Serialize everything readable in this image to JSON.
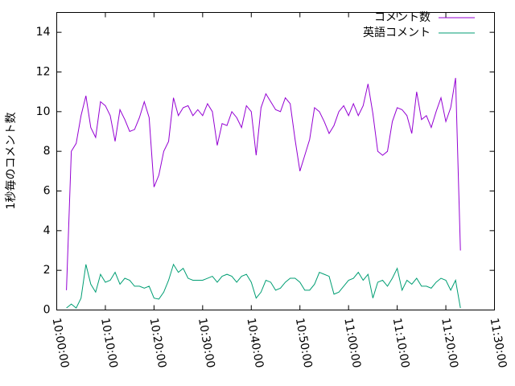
{
  "chart_data": {
    "type": "line",
    "ylabel": "1秒毎のコメント数",
    "x": [
      "10:02:00",
      "10:03:00",
      "10:04:00",
      "10:05:00",
      "10:06:00",
      "10:07:00",
      "10:08:00",
      "10:09:00",
      "10:10:00",
      "10:11:00",
      "10:12:00",
      "10:13:00",
      "10:14:00",
      "10:15:00",
      "10:16:00",
      "10:17:00",
      "10:18:00",
      "10:19:00",
      "10:20:00",
      "10:21:00",
      "10:22:00",
      "10:23:00",
      "10:24:00",
      "10:25:00",
      "10:26:00",
      "10:27:00",
      "10:28:00",
      "10:29:00",
      "10:30:00",
      "10:31:00",
      "10:32:00",
      "10:33:00",
      "10:34:00",
      "10:35:00",
      "10:36:00",
      "10:37:00",
      "10:38:00",
      "10:39:00",
      "10:40:00",
      "10:41:00",
      "10:42:00",
      "10:43:00",
      "10:44:00",
      "10:45:00",
      "10:46:00",
      "10:47:00",
      "10:48:00",
      "10:49:00",
      "10:50:00",
      "10:51:00",
      "10:52:00",
      "10:53:00",
      "10:54:00",
      "10:55:00",
      "10:56:00",
      "10:57:00",
      "10:58:00",
      "10:59:00",
      "11:00:00",
      "11:01:00",
      "11:02:00",
      "11:03:00",
      "11:04:00",
      "11:05:00",
      "11:06:00",
      "11:07:00",
      "11:08:00",
      "11:09:00",
      "11:10:00",
      "11:11:00",
      "11:12:00",
      "11:13:00",
      "11:14:00",
      "11:15:00",
      "11:16:00",
      "11:17:00",
      "11:18:00",
      "11:19:00",
      "11:20:00",
      "11:21:00",
      "11:22:00",
      "11:23:00"
    ],
    "series": [
      {
        "name": "コメント数",
        "color": "#9400d3",
        "values": [
          1.0,
          8.0,
          8.4,
          9.8,
          10.8,
          9.2,
          8.7,
          10.5,
          10.3,
          9.8,
          8.5,
          10.1,
          9.6,
          9.0,
          9.1,
          9.7,
          10.5,
          9.7,
          6.2,
          6.8,
          8.0,
          8.5,
          10.7,
          9.8,
          10.2,
          10.3,
          9.8,
          10.1,
          9.8,
          10.4,
          10.0,
          8.3,
          9.4,
          9.3,
          10.0,
          9.7,
          9.2,
          10.3,
          10.0,
          7.8,
          10.2,
          10.9,
          10.5,
          10.1,
          10.0,
          10.7,
          10.4,
          8.6,
          7.0,
          7.8,
          8.6,
          10.2,
          10.0,
          9.5,
          8.9,
          9.3,
          10.0,
          10.3,
          9.8,
          10.4,
          9.8,
          10.3,
          11.4,
          9.9,
          8.0,
          7.8,
          8.0,
          9.5,
          10.2,
          10.1,
          9.8,
          8.9,
          11.0,
          9.6,
          9.8,
          9.2,
          10.0,
          10.7,
          9.5,
          10.2,
          11.7,
          3.0
        ]
      },
      {
        "name": "英語コメント",
        "color": "#009e73",
        "values": [
          0.1,
          0.3,
          0.1,
          0.6,
          2.3,
          1.3,
          0.9,
          1.8,
          1.4,
          1.5,
          1.9,
          1.3,
          1.6,
          1.5,
          1.2,
          1.2,
          1.1,
          1.2,
          0.6,
          0.55,
          0.9,
          1.5,
          2.3,
          1.9,
          2.1,
          1.6,
          1.5,
          1.5,
          1.5,
          1.6,
          1.7,
          1.4,
          1.7,
          1.8,
          1.7,
          1.4,
          1.7,
          1.8,
          1.4,
          0.6,
          0.9,
          1.5,
          1.4,
          1.0,
          1.1,
          1.4,
          1.6,
          1.6,
          1.4,
          1.0,
          1.0,
          1.3,
          1.9,
          1.8,
          1.7,
          0.8,
          0.9,
          1.2,
          1.5,
          1.6,
          1.9,
          1.5,
          1.8,
          0.6,
          1.4,
          1.5,
          1.2,
          1.6,
          2.1,
          1.0,
          1.5,
          1.3,
          1.6,
          1.2,
          1.2,
          1.1,
          1.4,
          1.6,
          1.5,
          1.0,
          1.5,
          0.1
        ]
      }
    ],
    "xlim": [
      "10:00:00",
      "11:30:00"
    ],
    "xticks": [
      "10:00:00",
      "10:10:00",
      "10:20:00",
      "10:30:00",
      "10:40:00",
      "10:50:00",
      "11:00:00",
      "11:10:00",
      "11:20:00",
      "11:30:00"
    ],
    "ylim": [
      0,
      15
    ],
    "yticks": [
      0,
      2,
      4,
      6,
      8,
      10,
      12,
      14
    ],
    "legend": "upper-right",
    "grid": false
  }
}
